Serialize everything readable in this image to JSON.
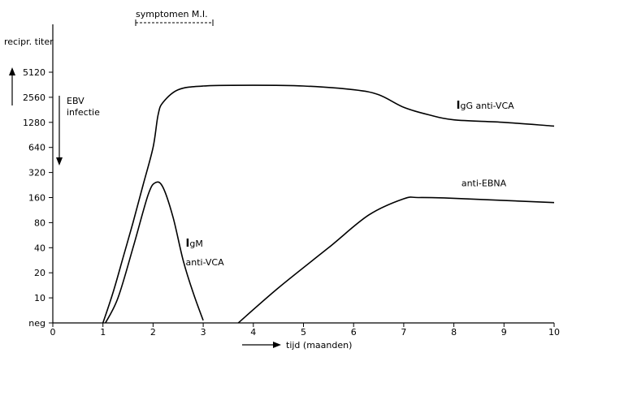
{
  "chart_data": {
    "type": "line",
    "title": "",
    "xlabel": "tijd (maanden)",
    "ylabel": "recipr. titer",
    "x_ticks": [
      "0",
      "1",
      "2",
      "3",
      "4",
      "5",
      "6",
      "7",
      "8",
      "9",
      "10"
    ],
    "y_ticks": [
      "neg",
      "10",
      "20",
      "40",
      "80",
      "160",
      "320",
      "640",
      "1280",
      "2560",
      "5120"
    ],
    "xlim": [
      0,
      10
    ],
    "ylim_levels": [
      0,
      10
    ],
    "y_scale": "log2 titer levels (neg, 10, 20, ... 5120)",
    "grid": false,
    "symptom_bracket": {
      "label": "symptomen M.I.",
      "x_range": [
        1.65,
        3.2
      ]
    },
    "infection_marker": {
      "label_line1": "EBV",
      "label_line2": "infectie",
      "x": 0.15
    },
    "series": [
      {
        "name": "IgG anti-VCA",
        "points": [
          [
            1.0,
            0
          ],
          [
            1.2,
            1.2
          ],
          [
            1.4,
            2.6
          ],
          [
            1.6,
            4.0
          ],
          [
            1.8,
            5.5
          ],
          [
            2.0,
            7.0
          ],
          [
            2.1,
            8.3
          ],
          [
            2.2,
            8.8
          ],
          [
            2.5,
            9.3
          ],
          [
            3.0,
            9.45
          ],
          [
            4.0,
            9.48
          ],
          [
            5.0,
            9.45
          ],
          [
            6.0,
            9.3
          ],
          [
            6.5,
            9.1
          ],
          [
            7.0,
            8.6
          ],
          [
            7.5,
            8.3
          ],
          [
            8.0,
            8.1
          ],
          [
            9.0,
            8.0
          ],
          [
            10.0,
            7.85
          ]
        ]
      },
      {
        "name": "IgM anti-VCA",
        "points": [
          [
            1.05,
            0
          ],
          [
            1.3,
            1.0
          ],
          [
            1.6,
            3.0
          ],
          [
            1.9,
            5.1
          ],
          [
            2.05,
            5.6
          ],
          [
            2.2,
            5.4
          ],
          [
            2.4,
            4.2
          ],
          [
            2.6,
            2.5
          ],
          [
            2.8,
            1.2
          ],
          [
            3.0,
            0.1
          ]
        ]
      },
      {
        "name": "anti-EBNA",
        "points": [
          [
            3.7,
            0
          ],
          [
            4.5,
            1.4
          ],
          [
            5.5,
            3.0
          ],
          [
            6.3,
            4.3
          ],
          [
            7.0,
            4.95
          ],
          [
            7.3,
            5.0
          ],
          [
            8.0,
            4.97
          ],
          [
            10.0,
            4.8
          ]
        ]
      }
    ],
    "annotations": [
      {
        "text_prefix": "I",
        "text": "gG anti-VCA",
        "x": 8.05,
        "y": 8.55
      },
      {
        "text_prefix": "I",
        "text": "gM",
        "x": 2.65,
        "y": 3.05
      },
      {
        "text": "anti-VCA",
        "x": 2.65,
        "y": 2.3
      },
      {
        "text": "anti-EBNA",
        "x": 8.15,
        "y": 5.45
      }
    ]
  }
}
